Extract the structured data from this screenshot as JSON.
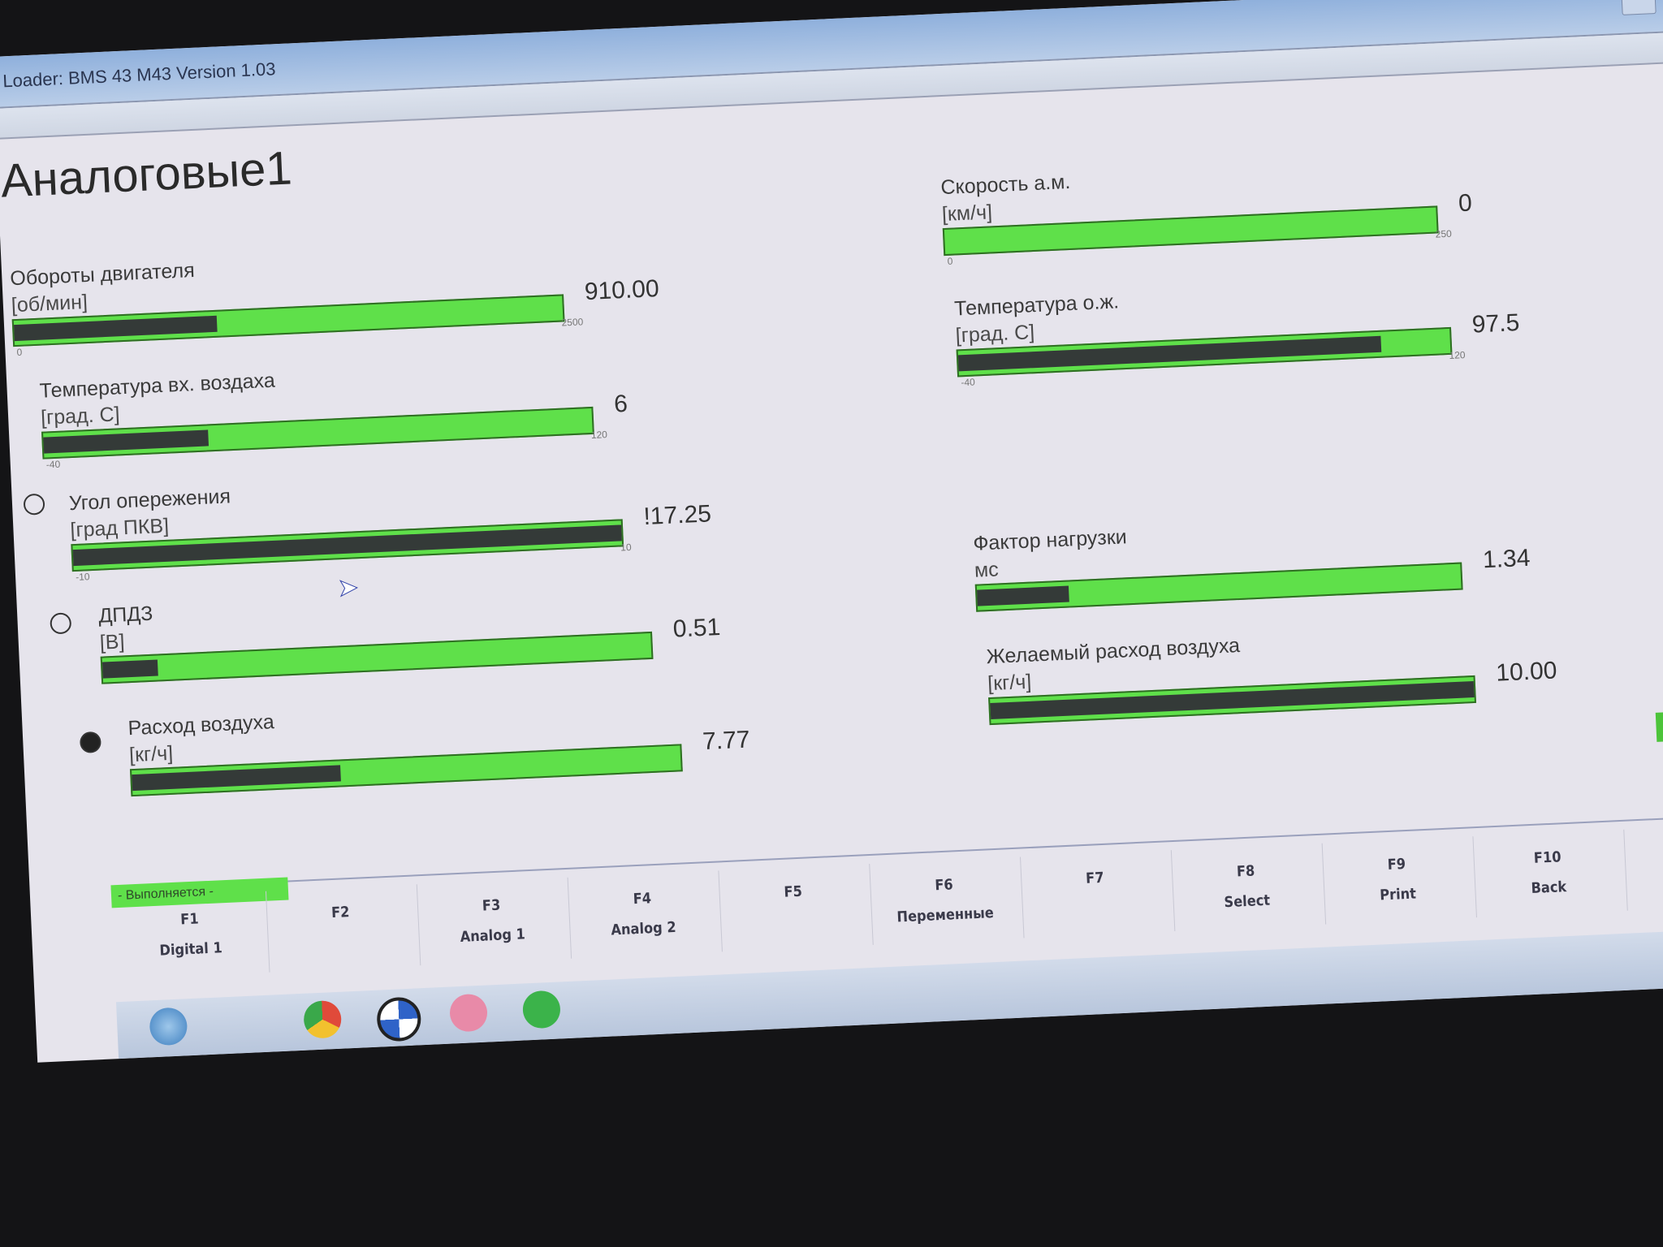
{
  "window": {
    "title": "Loader:  BMS 43 M43 Version 1.03"
  },
  "page_title": "Аналоговые1",
  "gauges_left": [
    {
      "label": "Обороты двигателя",
      "unit": "[об/мин]",
      "value": "910.00",
      "min": "0",
      "max": "2500",
      "fill_percent": 37
    },
    {
      "label": "Температура вх. воздаха",
      "unit": "[град. С]",
      "value": "6",
      "min": "-40",
      "max": "120",
      "fill_percent": 30
    },
    {
      "label": "Угол опережения",
      "unit": "[град ПКВ]",
      "value": "!17.25",
      "min": "-10",
      "max": "10",
      "fill_percent": 100
    },
    {
      "label": "ДПДЗ",
      "unit": "[B]",
      "value": "0.51",
      "min": "",
      "max": "",
      "fill_percent": 10
    },
    {
      "label": "Расход воздуха",
      "unit": "[кг/ч]",
      "value": "7.77",
      "min": "",
      "max": "",
      "fill_percent": 38
    }
  ],
  "gauges_right": [
    {
      "label": "Скорость а.м.",
      "unit": "[км/ч]",
      "value": "0",
      "min": "0",
      "max": "250",
      "fill_percent": 0
    },
    {
      "label": "Температура о.ж.",
      "unit": "[град. С]",
      "value": "97.5",
      "min": "-40",
      "max": "120",
      "fill_percent": 86
    },
    {
      "label": "Фактор нагрузки",
      "unit": "мс",
      "value": "1.34",
      "min": "",
      "max": "",
      "fill_percent": 19
    },
    {
      "label": "Желаемый расход воздуха",
      "unit": "[кг/ч]",
      "value": "10.00",
      "min": "",
      "max": "",
      "fill_percent": 100
    }
  ],
  "status": "- Выполняется -",
  "function_keys": [
    {
      "key": "F1",
      "label": "Digital 1"
    },
    {
      "key": "F2",
      "label": ""
    },
    {
      "key": "F3",
      "label": "Analog 1"
    },
    {
      "key": "F4",
      "label": "Analog 2"
    },
    {
      "key": "F5",
      "label": ""
    },
    {
      "key": "F6",
      "label": "Переменные"
    },
    {
      "key": "F7",
      "label": ""
    },
    {
      "key": "F8",
      "label": "Select"
    },
    {
      "key": "F9",
      "label": "Print"
    },
    {
      "key": "F10",
      "label": "Back"
    }
  ],
  "colors": {
    "bar_green": "#5fe04a",
    "bar_fill": "#343a38",
    "titlebar": "#8fb0dc"
  },
  "icons": [
    "windows-start-icon",
    "chrome-icon",
    "bmw-icon",
    "app-icon",
    "ediabas-icon",
    "up-arrow-icon"
  ]
}
